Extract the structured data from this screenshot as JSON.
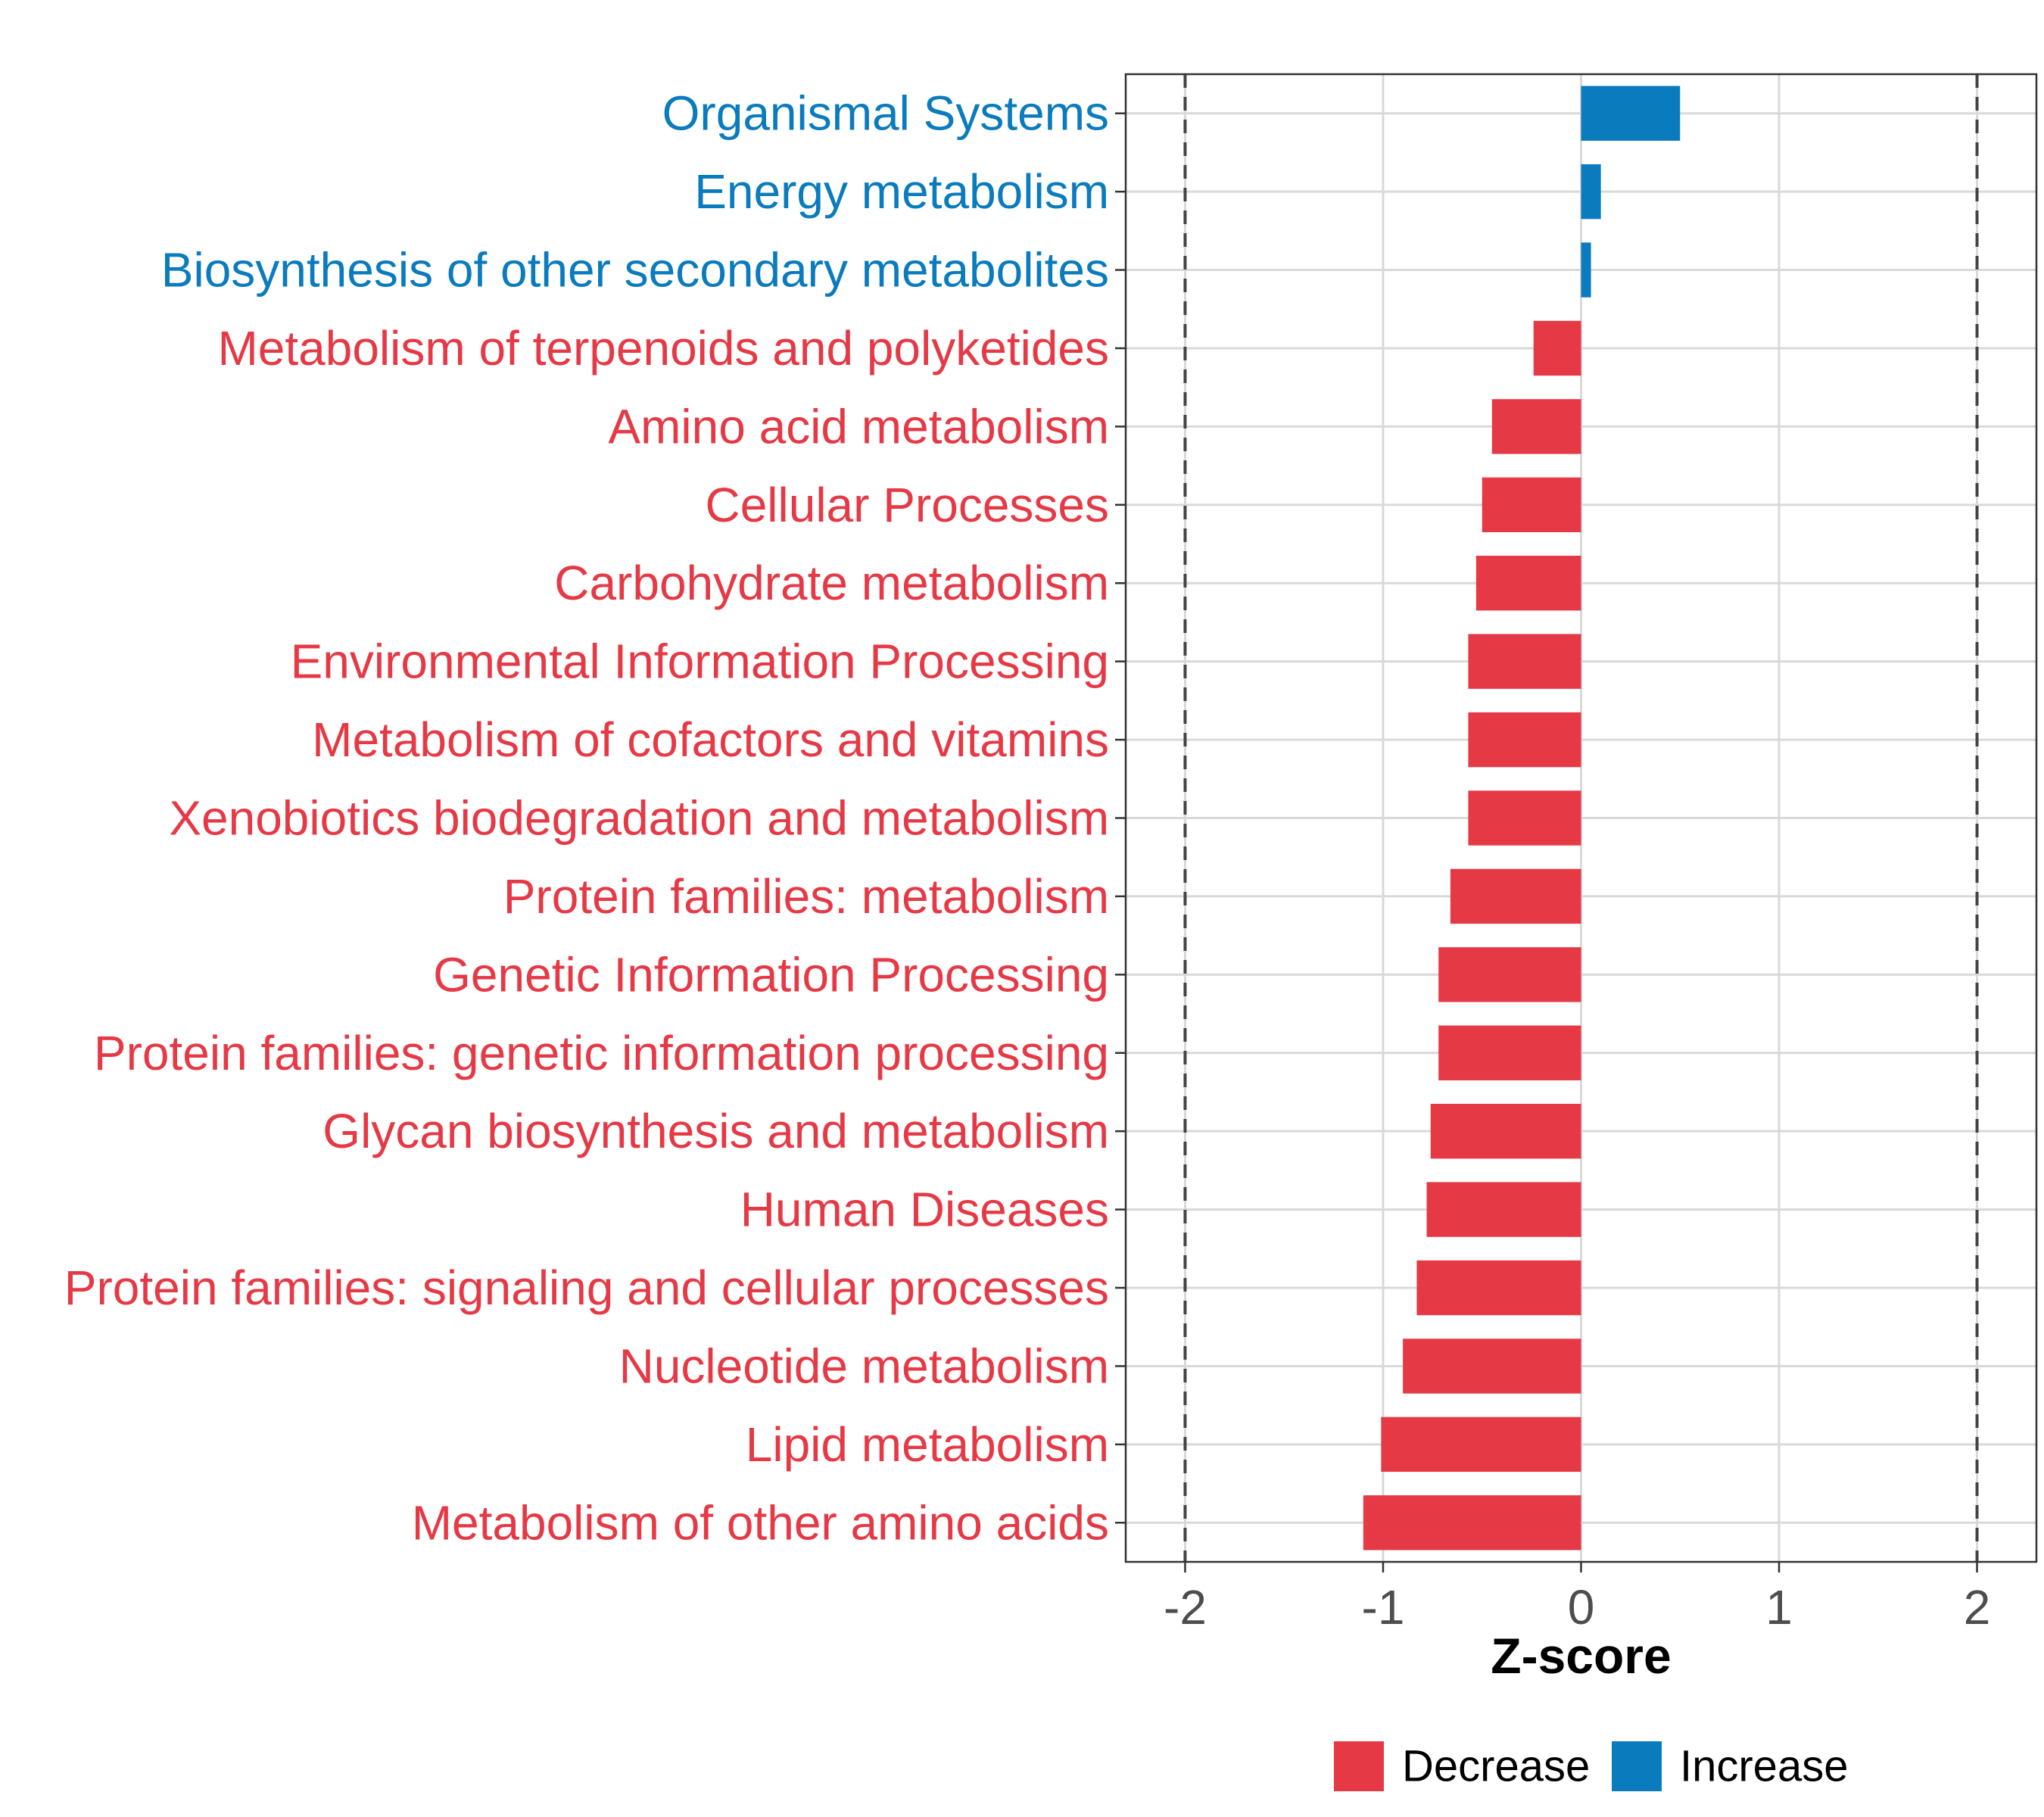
{
  "chart_data": {
    "type": "bar",
    "orientation": "horizontal",
    "xlabel": "Z-score",
    "ylabel": "",
    "xlim": [
      -2.3,
      2.3
    ],
    "x_ticks": [
      -2,
      -1,
      0,
      1,
      2
    ],
    "x_tick_labels": [
      "-2",
      "-1",
      "0",
      "1",
      "2"
    ],
    "reference_lines": [
      -2,
      2
    ],
    "grid": true,
    "legend_position": "bottom",
    "legend": [
      {
        "name": "Decrease",
        "color": "#e63946"
      },
      {
        "name": "Increase",
        "color": "#0a7bbd"
      }
    ],
    "categories": [
      "Organismal Systems",
      "Energy metabolism",
      "Biosynthesis of other secondary metabolites",
      "Metabolism of terpenoids and polyketides",
      "Amino acid metabolism",
      "Cellular Processes",
      "Carbohydrate metabolism",
      "Environmental Information Processing",
      "Metabolism of cofactors and vitamins",
      "Xenobiotics biodegradation and metabolism",
      "Protein families: metabolism",
      "Genetic Information Processing",
      "Protein families: genetic information processing",
      "Glycan biosynthesis and metabolism",
      "Human Diseases",
      "Protein families: signaling and cellular processes",
      "Nucleotide metabolism",
      "Lipid metabolism",
      "Metabolism of other amino acids"
    ],
    "values": [
      0.5,
      0.1,
      0.05,
      -0.24,
      -0.45,
      -0.5,
      -0.53,
      -0.57,
      -0.57,
      -0.57,
      -0.66,
      -0.72,
      -0.72,
      -0.76,
      -0.78,
      -0.83,
      -0.9,
      -1.01,
      -1.1
    ],
    "groups": [
      "Increase",
      "Increase",
      "Increase",
      "Decrease",
      "Decrease",
      "Decrease",
      "Decrease",
      "Decrease",
      "Decrease",
      "Decrease",
      "Decrease",
      "Decrease",
      "Decrease",
      "Decrease",
      "Decrease",
      "Decrease",
      "Decrease",
      "Decrease",
      "Decrease"
    ]
  }
}
